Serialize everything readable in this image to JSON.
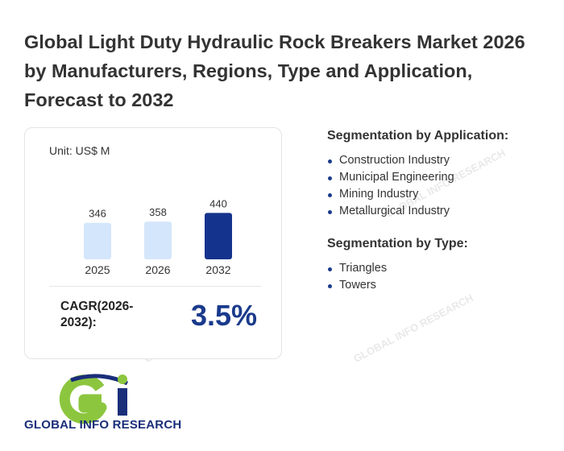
{
  "title": "Global Light Duty Hydraulic Rock Breakers Market 2026 by Manufacturers, Regions, Type and Application, Forecast to 2032",
  "chart_data": {
    "type": "bar",
    "unit_label": "Unit: US$ M",
    "categories": [
      "2025",
      "2026",
      "2032"
    ],
    "values": [
      346,
      358,
      440
    ],
    "highlight_index": 2,
    "colors": {
      "normal": "#d4e6fb",
      "highlight": "#14338c"
    }
  },
  "cagr": {
    "label": "CAGR(2026-2032):",
    "value": "3.5%"
  },
  "application": {
    "title": "Segmentation by Application:",
    "items": [
      "Construction Industry",
      "Municipal Engineering",
      "Mining Industry",
      "Metallurgical Industry"
    ]
  },
  "type": {
    "title": "Segmentation by Type:",
    "items": [
      "Triangles",
      "Towers"
    ]
  },
  "logo": {
    "text": "GLOBAL INFO RESEARCH",
    "colors": {
      "green": "#8cc63f",
      "blue": "#1a2e7a"
    }
  },
  "watermark": "GLOBAL INFO RESEARCH"
}
